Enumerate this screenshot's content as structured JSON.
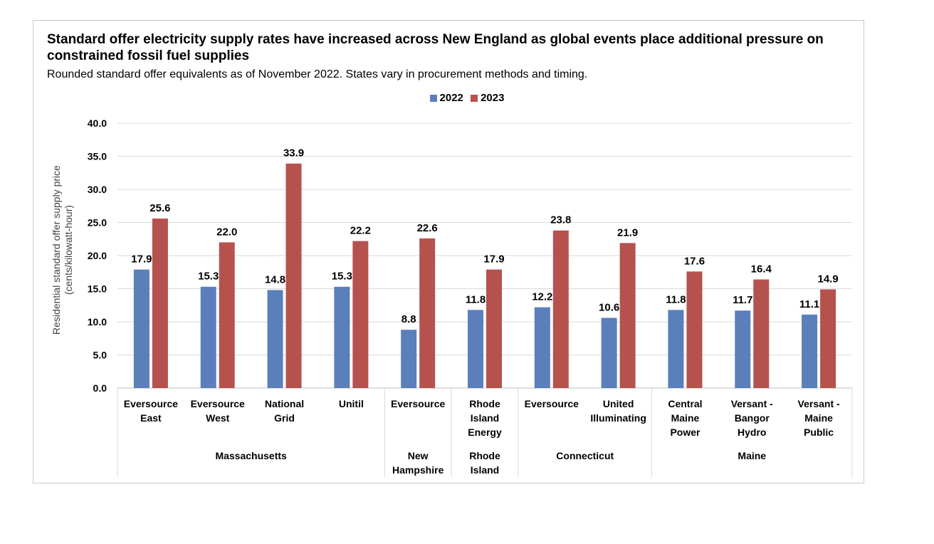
{
  "chart_data": {
    "type": "bar",
    "title": "Standard offer electricity supply rates have increased across New England as global events place additional pressure on constrained fossil fuel supplies",
    "subtitle": "Rounded standard offer equivalents as of November 2022. States vary in procurement methods and timing.",
    "ylabel": "Residential standard offer supply price (cents/kilowatt-hour)",
    "ylim": [
      0,
      40
    ],
    "yticks": [
      "0.0",
      "5.0",
      "10.0",
      "15.0",
      "20.0",
      "25.0",
      "30.0",
      "35.0",
      "40.0"
    ],
    "legend_position": "top-center",
    "grid": true,
    "categories": [
      [
        "Eversource",
        "East"
      ],
      [
        "Eversource",
        "West"
      ],
      [
        "National",
        "Grid"
      ],
      [
        "Unitil"
      ],
      [
        "Eversource"
      ],
      [
        "Rhode",
        "Island",
        "Energy"
      ],
      [
        "Eversource"
      ],
      [
        "United",
        "Illuminating"
      ],
      [
        "Central",
        "Maine",
        "Power"
      ],
      [
        "Versant -",
        "Bangor",
        "Hydro"
      ],
      [
        "Versant -",
        "Maine",
        "Public"
      ]
    ],
    "groups": [
      {
        "label": [
          "Massachusetts"
        ],
        "count": 4
      },
      {
        "label": [
          "New",
          "Hampshire"
        ],
        "count": 1
      },
      {
        "label": [
          "Rhode",
          "Island"
        ],
        "count": 1
      },
      {
        "label": [
          "Connecticut"
        ],
        "count": 2
      },
      {
        "label": [
          "Maine"
        ],
        "count": 3
      }
    ],
    "series": [
      {
        "name": "2022",
        "color": "#5b7fbb",
        "values": [
          17.9,
          15.3,
          14.8,
          15.3,
          8.8,
          11.8,
          12.2,
          10.6,
          11.8,
          11.7,
          11.1
        ]
      },
      {
        "name": "2023",
        "color": "#b5524e",
        "values": [
          25.6,
          22.0,
          33.9,
          22.2,
          22.6,
          17.9,
          23.8,
          21.9,
          17.6,
          16.4,
          14.9
        ]
      }
    ]
  }
}
